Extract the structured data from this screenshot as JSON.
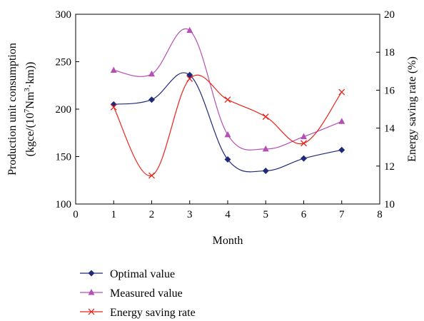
{
  "chart_data": {
    "type": "line",
    "xlabel": "Month",
    "ylabel_left_line1": "Production unit consumption",
    "ylabel_left_line2_parts": [
      "(kgce/(10",
      "7",
      "Nm",
      "3",
      "·km))"
    ],
    "ylabel_right": "Energy saving rate (%)",
    "x_ticks": [
      "0",
      "1",
      "2",
      "3",
      "4",
      "5",
      "6",
      "7",
      "8"
    ],
    "y_left_ticks": [
      "100",
      "150",
      "200",
      "250",
      "300"
    ],
    "y_right_ticks": [
      "10",
      "12",
      "14",
      "16",
      "18",
      "20"
    ],
    "xlim": [
      0,
      8
    ],
    "ylim_left": [
      100,
      300
    ],
    "ylim_right": [
      10,
      20
    ],
    "grid": false,
    "legend_position": "bottom",
    "x": [
      1,
      2,
      3,
      4,
      5,
      6,
      7
    ],
    "series": [
      {
        "name": "Optimal value",
        "axis": "left",
        "marker": "diamond",
        "color": "#1f2a7a",
        "values": [
          205,
          210,
          236,
          147,
          135,
          148,
          157
        ]
      },
      {
        "name": "Measured value",
        "axis": "left",
        "marker": "triangle",
        "color": "#b44fb4",
        "values": [
          241,
          237,
          283,
          173,
          158,
          171,
          187
        ]
      },
      {
        "name": "Energy saving rate",
        "axis": "right",
        "marker": "x",
        "color": "#e8261c",
        "values": [
          15.1,
          11.5,
          16.6,
          15.5,
          14.6,
          13.2,
          15.9
        ]
      }
    ]
  }
}
